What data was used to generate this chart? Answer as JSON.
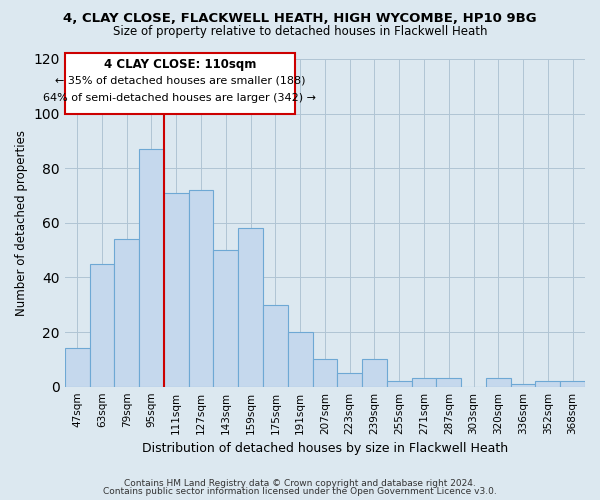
{
  "title1": "4, CLAY CLOSE, FLACKWELL HEATH, HIGH WYCOMBE, HP10 9BG",
  "title2": "Size of property relative to detached houses in Flackwell Heath",
  "xlabel": "Distribution of detached houses by size in Flackwell Heath",
  "ylabel": "Number of detached properties",
  "categories": [
    "47sqm",
    "63sqm",
    "79sqm",
    "95sqm",
    "111sqm",
    "127sqm",
    "143sqm",
    "159sqm",
    "175sqm",
    "191sqm",
    "207sqm",
    "223sqm",
    "239sqm",
    "255sqm",
    "271sqm",
    "287sqm",
    "303sqm",
    "320sqm",
    "336sqm",
    "352sqm",
    "368sqm"
  ],
  "values": [
    14,
    45,
    54,
    87,
    71,
    72,
    50,
    58,
    30,
    20,
    10,
    5,
    10,
    2,
    3,
    3,
    0,
    3,
    1,
    2,
    2
  ],
  "bar_color": "#c5d8ed",
  "bar_edge_color": "#6ea8d4",
  "vline_x_idx": 4,
  "vline_color": "#cc0000",
  "ylim": [
    0,
    120
  ],
  "yticks": [
    0,
    20,
    40,
    60,
    80,
    100,
    120
  ],
  "annotation_title": "4 CLAY CLOSE: 110sqm",
  "annotation_line1": "← 35% of detached houses are smaller (188)",
  "annotation_line2": "64% of semi-detached houses are larger (342) →",
  "annotation_box_color": "#ffffff",
  "annotation_box_edge": "#cc0000",
  "footnote1": "Contains HM Land Registry data © Crown copyright and database right 2024.",
  "footnote2": "Contains public sector information licensed under the Open Government Licence v3.0.",
  "background_color": "#dce8f0",
  "plot_bg_color": "#dce8f0"
}
